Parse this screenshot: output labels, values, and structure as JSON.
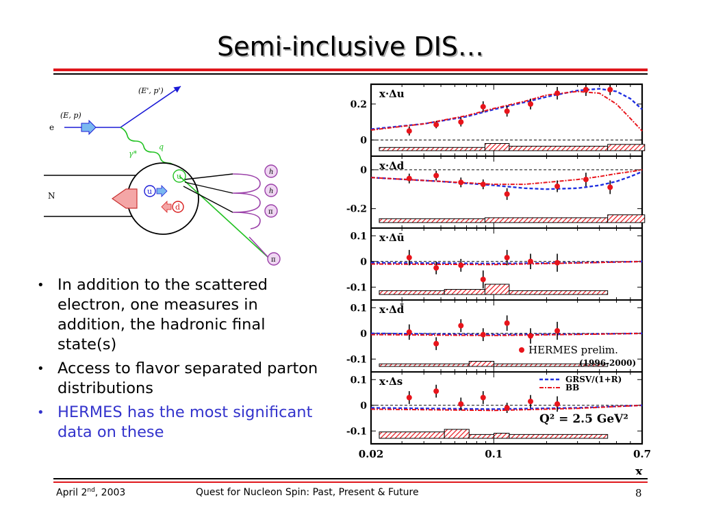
{
  "slide": {
    "title": "Semi-inclusive DIS…",
    "bullets": [
      "In addition to the scattered electron, one measures in addition, the hadronic final state(s)",
      "Access to flavor separated parton distributions",
      "HERMES has the most significant data on these"
    ],
    "footer": {
      "date_prefix": "April 2",
      "date_sup": "nd",
      "date_suffix": ", 2003",
      "title": "Quest for Nucleon Spin: Past, Present & Future",
      "page": "8"
    }
  },
  "diagram": {
    "labels": {
      "electron": "e",
      "electron_in": "(E, p)",
      "electron_out": "(E', p')",
      "photon": "γ*",
      "photon_q": "q",
      "nucleon": "N",
      "quark_u": "u",
      "quark_d": "d",
      "hadron_1": "h",
      "hadron_2": "h",
      "hadron_3": "π",
      "hadron_4": "π"
    }
  },
  "chart_data": {
    "type": "scatter",
    "xlabel": "x",
    "x_scale": "log",
    "xlim": [
      0.02,
      0.7
    ],
    "x_ticks": [
      "0.02",
      "0.1",
      "0.7"
    ],
    "legend": {
      "data_label": "HERMES prelim.",
      "data_years": "(1996-2000)",
      "curves": [
        "GRSV/(1+R)",
        "BB"
      ],
      "q2_label": "Q² = 2.5 GeV²"
    },
    "colors": {
      "data": "#e8141b",
      "grsv": "#1f2fe0",
      "bb": "#e8141b"
    },
    "panels": [
      {
        "label": "x·Δu",
        "ylim": [
          -0.09,
          0.31
        ],
        "ticks": [
          0,
          0.2
        ],
        "tick_labels": [
          "0",
          "0.2"
        ],
        "points": [
          [
            0.033,
            0.05,
            0.025
          ],
          [
            0.047,
            0.085,
            0.02
          ],
          [
            0.065,
            0.1,
            0.025
          ],
          [
            0.087,
            0.185,
            0.03
          ],
          [
            0.119,
            0.16,
            0.03
          ],
          [
            0.162,
            0.2,
            0.03
          ],
          [
            0.23,
            0.26,
            0.035
          ],
          [
            0.335,
            0.28,
            0.035
          ],
          [
            0.46,
            0.28,
            0.03
          ]
        ],
        "grsv": [
          [
            0.02,
            0.06
          ],
          [
            0.04,
            0.09
          ],
          [
            0.07,
            0.13
          ],
          [
            0.1,
            0.17
          ],
          [
            0.15,
            0.21
          ],
          [
            0.2,
            0.24
          ],
          [
            0.3,
            0.275
          ],
          [
            0.4,
            0.285
          ],
          [
            0.5,
            0.27
          ],
          [
            0.6,
            0.23
          ],
          [
            0.7,
            0.17
          ]
        ],
        "bb": [
          [
            0.02,
            0.055
          ],
          [
            0.04,
            0.09
          ],
          [
            0.07,
            0.135
          ],
          [
            0.1,
            0.175
          ],
          [
            0.15,
            0.215
          ],
          [
            0.2,
            0.25
          ],
          [
            0.3,
            0.27
          ],
          [
            0.4,
            0.26
          ],
          [
            0.5,
            0.2
          ],
          [
            0.6,
            0.12
          ],
          [
            0.7,
            0.05
          ]
        ],
        "sys_bands": [
          [
            0.02,
            0.08,
            0.018
          ],
          [
            0.08,
            0.11,
            0.04
          ],
          [
            0.11,
            0.4,
            0.025
          ],
          [
            0.4,
            0.65,
            0.035
          ]
        ]
      },
      {
        "label": "x·Δd",
        "ylim": [
          -0.3,
          0.07
        ],
        "ticks": [
          0,
          -0.2
        ],
        "tick_labels": [
          "0",
          "-0.2"
        ],
        "points": [
          [
            0.033,
            -0.045,
            0.025
          ],
          [
            0.047,
            -0.03,
            0.025
          ],
          [
            0.065,
            -0.065,
            0.025
          ],
          [
            0.087,
            -0.075,
            0.025
          ],
          [
            0.119,
            -0.125,
            0.03
          ],
          [
            0.23,
            -0.085,
            0.03
          ],
          [
            0.335,
            -0.05,
            0.035
          ],
          [
            0.46,
            -0.09,
            0.035
          ]
        ],
        "grsv": [
          [
            0.02,
            -0.04
          ],
          [
            0.05,
            -0.06
          ],
          [
            0.1,
            -0.08
          ],
          [
            0.15,
            -0.095
          ],
          [
            0.2,
            -0.1
          ],
          [
            0.3,
            -0.095
          ],
          [
            0.4,
            -0.08
          ],
          [
            0.5,
            -0.06
          ],
          [
            0.6,
            -0.035
          ],
          [
            0.7,
            -0.01
          ]
        ],
        "bb": [
          [
            0.02,
            -0.04
          ],
          [
            0.05,
            -0.06
          ],
          [
            0.1,
            -0.075
          ],
          [
            0.15,
            -0.075
          ],
          [
            0.2,
            -0.065
          ],
          [
            0.3,
            -0.05
          ],
          [
            0.4,
            -0.035
          ],
          [
            0.5,
            -0.02
          ],
          [
            0.6,
            -0.01
          ],
          [
            0.7,
            0.0
          ]
        ],
        "sys_bands": [
          [
            0.02,
            0.08,
            0.02
          ],
          [
            0.08,
            0.4,
            0.025
          ],
          [
            0.4,
            0.65,
            0.04
          ]
        ]
      },
      {
        "label": "x·Δū",
        "ylim": [
          -0.15,
          0.13
        ],
        "ticks": [
          0.1,
          0,
          -0.1
        ],
        "tick_labels": [
          "0.1",
          "0",
          "-0.1"
        ],
        "points": [
          [
            0.033,
            0.015,
            0.03
          ],
          [
            0.047,
            -0.025,
            0.025
          ],
          [
            0.065,
            -0.015,
            0.025
          ],
          [
            0.087,
            -0.07,
            0.035
          ],
          [
            0.119,
            0.015,
            0.03
          ],
          [
            0.162,
            0.0,
            0.03
          ],
          [
            0.23,
            -0.005,
            0.035
          ]
        ],
        "grsv": [
          [
            0.02,
            -0.005
          ],
          [
            0.1,
            -0.008
          ],
          [
            0.3,
            -0.005
          ],
          [
            0.7,
            0.0
          ]
        ],
        "bb": [
          [
            0.02,
            -0.01
          ],
          [
            0.1,
            -0.012
          ],
          [
            0.3,
            -0.006
          ],
          [
            0.7,
            0.0
          ]
        ],
        "sys_bands": [
          [
            0.02,
            0.047,
            0.015
          ],
          [
            0.047,
            0.08,
            0.02
          ],
          [
            0.08,
            0.11,
            0.04
          ],
          [
            0.11,
            0.4,
            0.015
          ]
        ]
      },
      {
        "label": "x·Δd̄",
        "ylim": [
          -0.15,
          0.13
        ],
        "ticks": [
          0.1,
          0,
          -0.1
        ],
        "tick_labels": [
          "0.1",
          "0",
          "-0.1"
        ],
        "points": [
          [
            0.033,
            0.005,
            0.03
          ],
          [
            0.047,
            -0.04,
            0.025
          ],
          [
            0.065,
            0.03,
            0.025
          ],
          [
            0.087,
            -0.005,
            0.025
          ],
          [
            0.119,
            0.04,
            0.03
          ],
          [
            0.162,
            -0.01,
            0.03
          ],
          [
            0.23,
            0.01,
            0.035
          ]
        ],
        "grsv": [
          [
            0.02,
            0.0
          ],
          [
            0.1,
            -0.005
          ],
          [
            0.3,
            -0.003
          ],
          [
            0.7,
            0.0
          ]
        ],
        "bb": [
          [
            0.02,
            -0.005
          ],
          [
            0.1,
            -0.008
          ],
          [
            0.3,
            -0.004
          ],
          [
            0.7,
            0.0
          ]
        ],
        "sys_bands": [
          [
            0.02,
            0.065,
            0.01
          ],
          [
            0.065,
            0.09,
            0.02
          ],
          [
            0.09,
            0.4,
            0.01
          ]
        ]
      },
      {
        "label": "x·Δs",
        "ylim": [
          -0.15,
          0.13
        ],
        "ticks": [
          0.1,
          0,
          -0.1
        ],
        "tick_labels": [
          "0.1",
          "0",
          "-0.1"
        ],
        "points": [
          [
            0.033,
            0.03,
            0.025
          ],
          [
            0.047,
            0.055,
            0.025
          ],
          [
            0.065,
            0.005,
            0.025
          ],
          [
            0.087,
            0.03,
            0.025
          ],
          [
            0.119,
            -0.01,
            0.02
          ],
          [
            0.162,
            0.015,
            0.025
          ],
          [
            0.23,
            0.005,
            0.03
          ]
        ],
        "grsv": [
          [
            0.02,
            -0.01
          ],
          [
            0.1,
            -0.015
          ],
          [
            0.3,
            -0.01
          ],
          [
            0.7,
            0.0
          ]
        ],
        "bb": [
          [
            0.02,
            -0.015
          ],
          [
            0.1,
            -0.02
          ],
          [
            0.3,
            -0.012
          ],
          [
            0.7,
            0.0
          ]
        ],
        "sys_bands": [
          [
            0.02,
            0.047,
            0.025
          ],
          [
            0.047,
            0.065,
            0.035
          ],
          [
            0.065,
            0.09,
            0.015
          ],
          [
            0.09,
            0.11,
            0.02
          ],
          [
            0.11,
            0.4,
            0.015
          ]
        ]
      }
    ]
  }
}
